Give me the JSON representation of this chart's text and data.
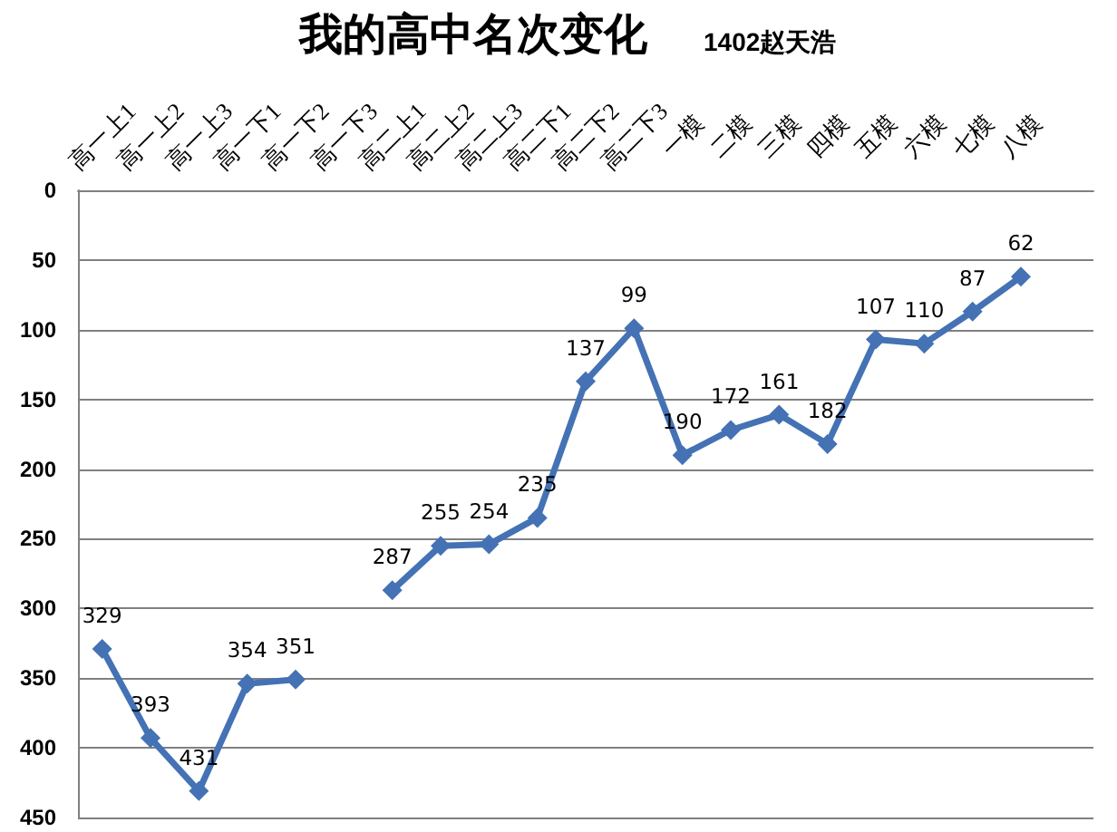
{
  "chart_data": {
    "type": "line",
    "title": "我的高中名次变化",
    "subtitle": "1402赵天浩",
    "categories": [
      "高一上1",
      "高一上2",
      "高一上3",
      "高一下1",
      "高一下2",
      "高一下3",
      "高二上1",
      "高二上2",
      "高二上3",
      "高二下1",
      "高二下2",
      "高二下3",
      "一模",
      "二模",
      "三模",
      "四模",
      "五模",
      "六模",
      "七模",
      "八模",
      null
    ],
    "values": [
      329,
      393,
      431,
      354,
      351,
      null,
      287,
      255,
      254,
      235,
      137,
      99,
      190,
      172,
      161,
      182,
      107,
      110,
      87,
      62,
      null
    ],
    "color": "#4472b4",
    "ylim": [
      450,
      0
    ],
    "yticks": [
      0,
      50,
      100,
      150,
      200,
      250,
      300,
      350,
      400,
      450
    ],
    "grid": "y",
    "marker": "diamond",
    "line_style": "solid",
    "data_labels": true
  }
}
